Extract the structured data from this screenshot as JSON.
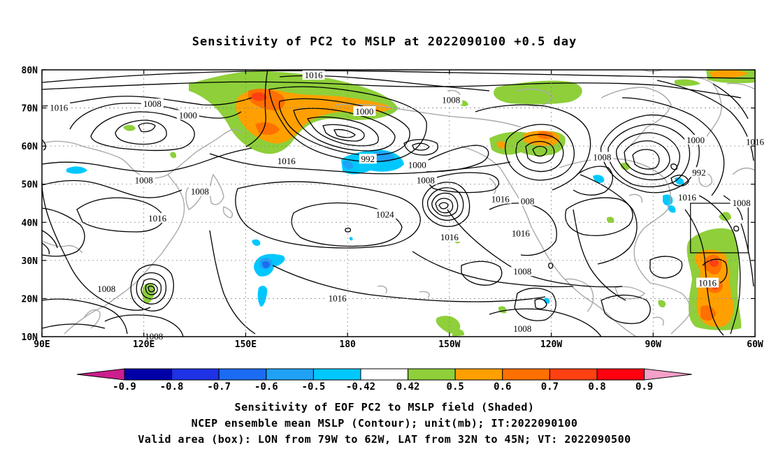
{
  "title": "Sensitivity of PC2 to MSLP at 2022090100 +0.5 day",
  "lat_labels": [
    "80N",
    "70N",
    "60N",
    "50N",
    "40N",
    "30N",
    "20N",
    "10N"
  ],
  "lon_labels": [
    "90E",
    "120E",
    "150E",
    "180",
    "150W",
    "120W",
    "90W",
    "60W"
  ],
  "contour_labels": [
    {
      "text": "1016",
      "lon": 170,
      "lat": 78.5
    },
    {
      "text": "1008",
      "lon": 210.5,
      "lat": 72
    },
    {
      "text": "1016",
      "lon": 95,
      "lat": 70
    },
    {
      "text": "1008",
      "lon": 122.5,
      "lat": 71
    },
    {
      "text": "1000",
      "lon": 133,
      "lat": 68
    },
    {
      "text": "1000",
      "lon": 185,
      "lat": 69
    },
    {
      "text": "1016",
      "lon": 162,
      "lat": 56
    },
    {
      "text": "992",
      "lon": 186,
      "lat": 56.5
    },
    {
      "text": "1000",
      "lon": 200.5,
      "lat": 55
    },
    {
      "text": "1008",
      "lon": 120,
      "lat": 51
    },
    {
      "text": "1008",
      "lon": 136.5,
      "lat": 48
    },
    {
      "text": "1008",
      "lon": 203,
      "lat": 51
    },
    {
      "text": "1008",
      "lon": 255,
      "lat": 57
    },
    {
      "text": "992",
      "lon": 283.5,
      "lat": 53
    },
    {
      "text": "1000",
      "lon": 282.5,
      "lat": 61.5
    },
    {
      "text": "1016",
      "lon": 300,
      "lat": 61
    },
    {
      "text": "1024",
      "lon": 191,
      "lat": 42
    },
    {
      "text": "1016",
      "lon": 124,
      "lat": 41
    },
    {
      "text": "1016",
      "lon": 225,
      "lat": 46
    },
    {
      "text": "008",
      "lon": 233,
      "lat": 45.5
    },
    {
      "text": "1016",
      "lon": 280,
      "lat": 46.5
    },
    {
      "text": "1008",
      "lon": 296,
      "lat": 45
    },
    {
      "text": "1016",
      "lon": 210,
      "lat": 36
    },
    {
      "text": "1016",
      "lon": 231,
      "lat": 37
    },
    {
      "text": "1008",
      "lon": 231.5,
      "lat": 27
    },
    {
      "text": "1016",
      "lon": 286,
      "lat": 24
    },
    {
      "text": "1008",
      "lon": 109,
      "lat": 22.5
    },
    {
      "text": "1016",
      "lon": 177,
      "lat": 20
    },
    {
      "text": "1008",
      "lon": 231.5,
      "lat": 12
    },
    {
      "text": "1008",
      "lon": 123,
      "lat": 10
    }
  ],
  "colorbar": {
    "labels": [
      "-0.9",
      "-0.8",
      "-0.7",
      "-0.6",
      "-0.5",
      "-0.42",
      "0.42",
      "0.5",
      "0.6",
      "0.7",
      "0.8",
      "0.9"
    ],
    "colors": [
      "#0000a8",
      "#1e32e6",
      "#1b6cf2",
      "#1fa2f6",
      "#00c8ff",
      "#ffffff",
      "#8ecf3a",
      "#ffa000",
      "#ff7000",
      "#ff4010",
      "#ff0010"
    ],
    "low_end_color": "#cc1e8c",
    "high_end_color": "#f5a0c8"
  },
  "captions": {
    "line1": "Sensitivity of EOF PC2 to MSLP field (Shaded)",
    "line2": "NCEP ensemble mean MSLP (Contour); unit(mb); IT:2022090100",
    "line3": "Valid area (box): LON from 79W to 62W, LAT from 32N to 45N; VT: 2022090500"
  },
  "valid_box": {
    "lon_min": 281,
    "lon_max": 298,
    "lat_min": 32,
    "lat_max": 45
  }
}
